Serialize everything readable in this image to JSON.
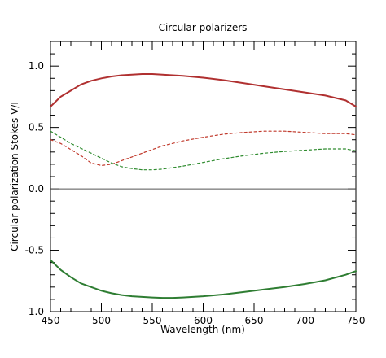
{
  "chart_data": {
    "type": "line",
    "title": "Circular polarizers",
    "xlabel": "Wavelength (nm)",
    "ylabel": "Circular polarization Stokes V/I",
    "xlim": [
      450,
      750
    ],
    "ylim": [
      -1.0,
      1.2
    ],
    "x_ticks": [
      450,
      500,
      550,
      600,
      650,
      700,
      750
    ],
    "y_ticks": [
      -1.0,
      -0.5,
      0.0,
      0.5,
      1.0
    ],
    "x_tick_labels": [
      "450",
      "500",
      "550",
      "600",
      "650",
      "700",
      "750"
    ],
    "y_tick_labels": [
      "-1.0",
      "-0.5",
      "0.0",
      "0.5",
      "1.0"
    ],
    "grid": false,
    "reference_line": {
      "y": 0.0,
      "color": "#555555"
    },
    "series": [
      {
        "style": "solid",
        "color": "#b03030",
        "x": [
          450,
          460,
          470,
          480,
          490,
          500,
          510,
          520,
          530,
          540,
          550,
          560,
          570,
          580,
          600,
          620,
          640,
          660,
          680,
          700,
          720,
          740,
          750
        ],
        "y": [
          0.67,
          0.75,
          0.8,
          0.85,
          0.88,
          0.9,
          0.915,
          0.925,
          0.93,
          0.935,
          0.935,
          0.93,
          0.925,
          0.92,
          0.905,
          0.885,
          0.86,
          0.835,
          0.81,
          0.785,
          0.76,
          0.72,
          0.67
        ]
      },
      {
        "style": "solid",
        "color": "#2e7d32",
        "x": [
          450,
          460,
          470,
          480,
          490,
          500,
          510,
          520,
          530,
          540,
          550,
          560,
          570,
          580,
          600,
          620,
          640,
          660,
          680,
          700,
          720,
          740,
          750
        ],
        "y": [
          -0.58,
          -0.66,
          -0.72,
          -0.77,
          -0.8,
          -0.83,
          -0.85,
          -0.865,
          -0.875,
          -0.88,
          -0.885,
          -0.888,
          -0.888,
          -0.885,
          -0.875,
          -0.86,
          -0.84,
          -0.82,
          -0.8,
          -0.775,
          -0.745,
          -0.7,
          -0.67
        ]
      },
      {
        "style": "dashed",
        "color": "#c0392b",
        "x": [
          450,
          460,
          470,
          480,
          490,
          500,
          510,
          520,
          530,
          540,
          550,
          560,
          580,
          600,
          620,
          640,
          660,
          680,
          700,
          720,
          740,
          750
        ],
        "y": [
          0.4,
          0.37,
          0.32,
          0.27,
          0.21,
          0.19,
          0.2,
          0.23,
          0.26,
          0.29,
          0.32,
          0.35,
          0.39,
          0.42,
          0.445,
          0.46,
          0.47,
          0.47,
          0.46,
          0.45,
          0.45,
          0.44
        ]
      },
      {
        "style": "dashed",
        "color": "#2e8b2e",
        "x": [
          450,
          460,
          470,
          480,
          490,
          500,
          510,
          520,
          530,
          540,
          550,
          560,
          580,
          600,
          620,
          640,
          660,
          680,
          700,
          720,
          740,
          750
        ],
        "y": [
          0.47,
          0.42,
          0.37,
          0.33,
          0.29,
          0.25,
          0.21,
          0.18,
          0.165,
          0.155,
          0.155,
          0.16,
          0.185,
          0.215,
          0.245,
          0.27,
          0.29,
          0.305,
          0.315,
          0.325,
          0.325,
          0.31
        ]
      }
    ]
  }
}
